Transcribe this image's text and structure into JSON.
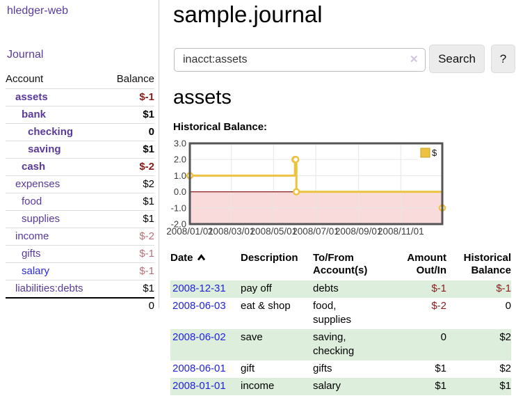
{
  "colors": {
    "link_purple": "#5a3a9c",
    "link_blue": "#2b28d8",
    "date_link_blue": "#2222dd",
    "negative_strong": "#8b1a1a",
    "negative_soft": "#b86f79",
    "row_green": "#ddeedd",
    "chart_line_yellow": "#edc240"
  },
  "sidebar": {
    "app_title": "hledger-web",
    "nav": {
      "journal_label": "Journal"
    },
    "accounts_table": {
      "headers": {
        "account": "Account",
        "balance": "Balance"
      },
      "rows": [
        {
          "name": "assets",
          "balance": "$-1",
          "indent": 1,
          "emph": true,
          "balance_style": "neg-strong"
        },
        {
          "name": "bank",
          "balance": "$1",
          "indent": 2,
          "emph": true,
          "balance_style": "pos"
        },
        {
          "name": "checking",
          "balance": "0",
          "indent": 3,
          "emph": true,
          "balance_style": "pos"
        },
        {
          "name": "saving",
          "balance": "$1",
          "indent": 3,
          "emph": true,
          "balance_style": "pos"
        },
        {
          "name": "cash",
          "balance": "$-2",
          "indent": 2,
          "emph": true,
          "balance_style": "neg-strong"
        },
        {
          "name": "expenses",
          "balance": "$2",
          "indent": 1,
          "emph": false,
          "balance_style": "pos"
        },
        {
          "name": "food",
          "balance": "$1",
          "indent": 2,
          "emph": false,
          "balance_style": "pos"
        },
        {
          "name": "supplies",
          "balance": "$1",
          "indent": 2,
          "emph": false,
          "balance_style": "pos"
        },
        {
          "name": "income",
          "balance": "$-2",
          "indent": 1,
          "emph": false,
          "balance_style": "neg-soft"
        },
        {
          "name": "gifts",
          "balance": "$-1",
          "indent": 2,
          "emph": false,
          "balance_style": "neg-soft"
        },
        {
          "name": "salary",
          "balance": "$-1",
          "indent": 2,
          "emph": false,
          "balance_style": "neg-soft",
          "link_color": "blue"
        },
        {
          "name": "liabilities:debts",
          "balance": "$1",
          "indent": 1,
          "emph": false,
          "balance_style": "pos"
        }
      ],
      "total": "0"
    }
  },
  "header": {
    "title": "sample.journal"
  },
  "search": {
    "query": "inacct:assets",
    "clear_icon": "✕",
    "button_label": "Search",
    "help_label": "?"
  },
  "account_page": {
    "heading": "assets",
    "chart_label": "Historical Balance:"
  },
  "chart_data": {
    "type": "line",
    "step": true,
    "title": "Historical Balance",
    "x_start": "2008-01-01",
    "x_end": "2008-12-31",
    "ylim": [
      -2,
      3
    ],
    "yticks": [
      3.0,
      2.0,
      1.0,
      0.0,
      -1.0,
      -2.0
    ],
    "ytick_labels": [
      "3.0",
      "2.0",
      "1.0",
      "0.0",
      "-1.0",
      "-2.0"
    ],
    "xticks": [
      "2008-01-01",
      "2008-03-01",
      "2008-05-01",
      "2008-07-01",
      "2008-09-01",
      "2008-11-01"
    ],
    "xtick_labels": [
      "2008/01/01",
      "2008/03/01",
      "2008/05/01",
      "2008/07/01",
      "2008/09/01",
      "2008/11/01"
    ],
    "series": [
      {
        "name": "$",
        "color": "#edc240",
        "points": [
          [
            "2008-01-01",
            1
          ],
          [
            "2008-06-01",
            2
          ],
          [
            "2008-06-02",
            2
          ],
          [
            "2008-06-03",
            0
          ],
          [
            "2008-12-31",
            -1
          ]
        ]
      }
    ],
    "legend_position": "top-right",
    "grid": true,
    "negative_region_color": "#f9dbdb",
    "zero_line_color": "#8b1a1a",
    "border_color": "#545454",
    "gridline_color": "#e7e7e7"
  },
  "register_table": {
    "headers": {
      "date": "Date",
      "description": "Description",
      "accounts": "To/From Account(s)",
      "amount": "Amount Out/In",
      "balance": "Historical Balance"
    },
    "sort_icon": "chevron-up",
    "rows": [
      {
        "date": "2008-12-31",
        "description": "pay off",
        "accounts": "debts",
        "amount": "$-1",
        "balance": "$-1",
        "amount_neg": true,
        "balance_neg": true
      },
      {
        "date": "2008-06-03",
        "description": "eat & shop",
        "accounts": "food, supplies",
        "amount": "$-2",
        "balance": "0",
        "amount_neg": true,
        "balance_neg": false
      },
      {
        "date": "2008-06-02",
        "description": "save",
        "accounts": "saving, checking",
        "amount": "0",
        "balance": "$2",
        "amount_neg": false,
        "balance_neg": false
      },
      {
        "date": "2008-06-01",
        "description": "gift",
        "accounts": "gifts",
        "amount": "$1",
        "balance": "$2",
        "amount_neg": false,
        "balance_neg": false
      },
      {
        "date": "2008-01-01",
        "description": "income",
        "accounts": "salary",
        "amount": "$1",
        "balance": "$1",
        "amount_neg": false,
        "balance_neg": false
      }
    ]
  }
}
